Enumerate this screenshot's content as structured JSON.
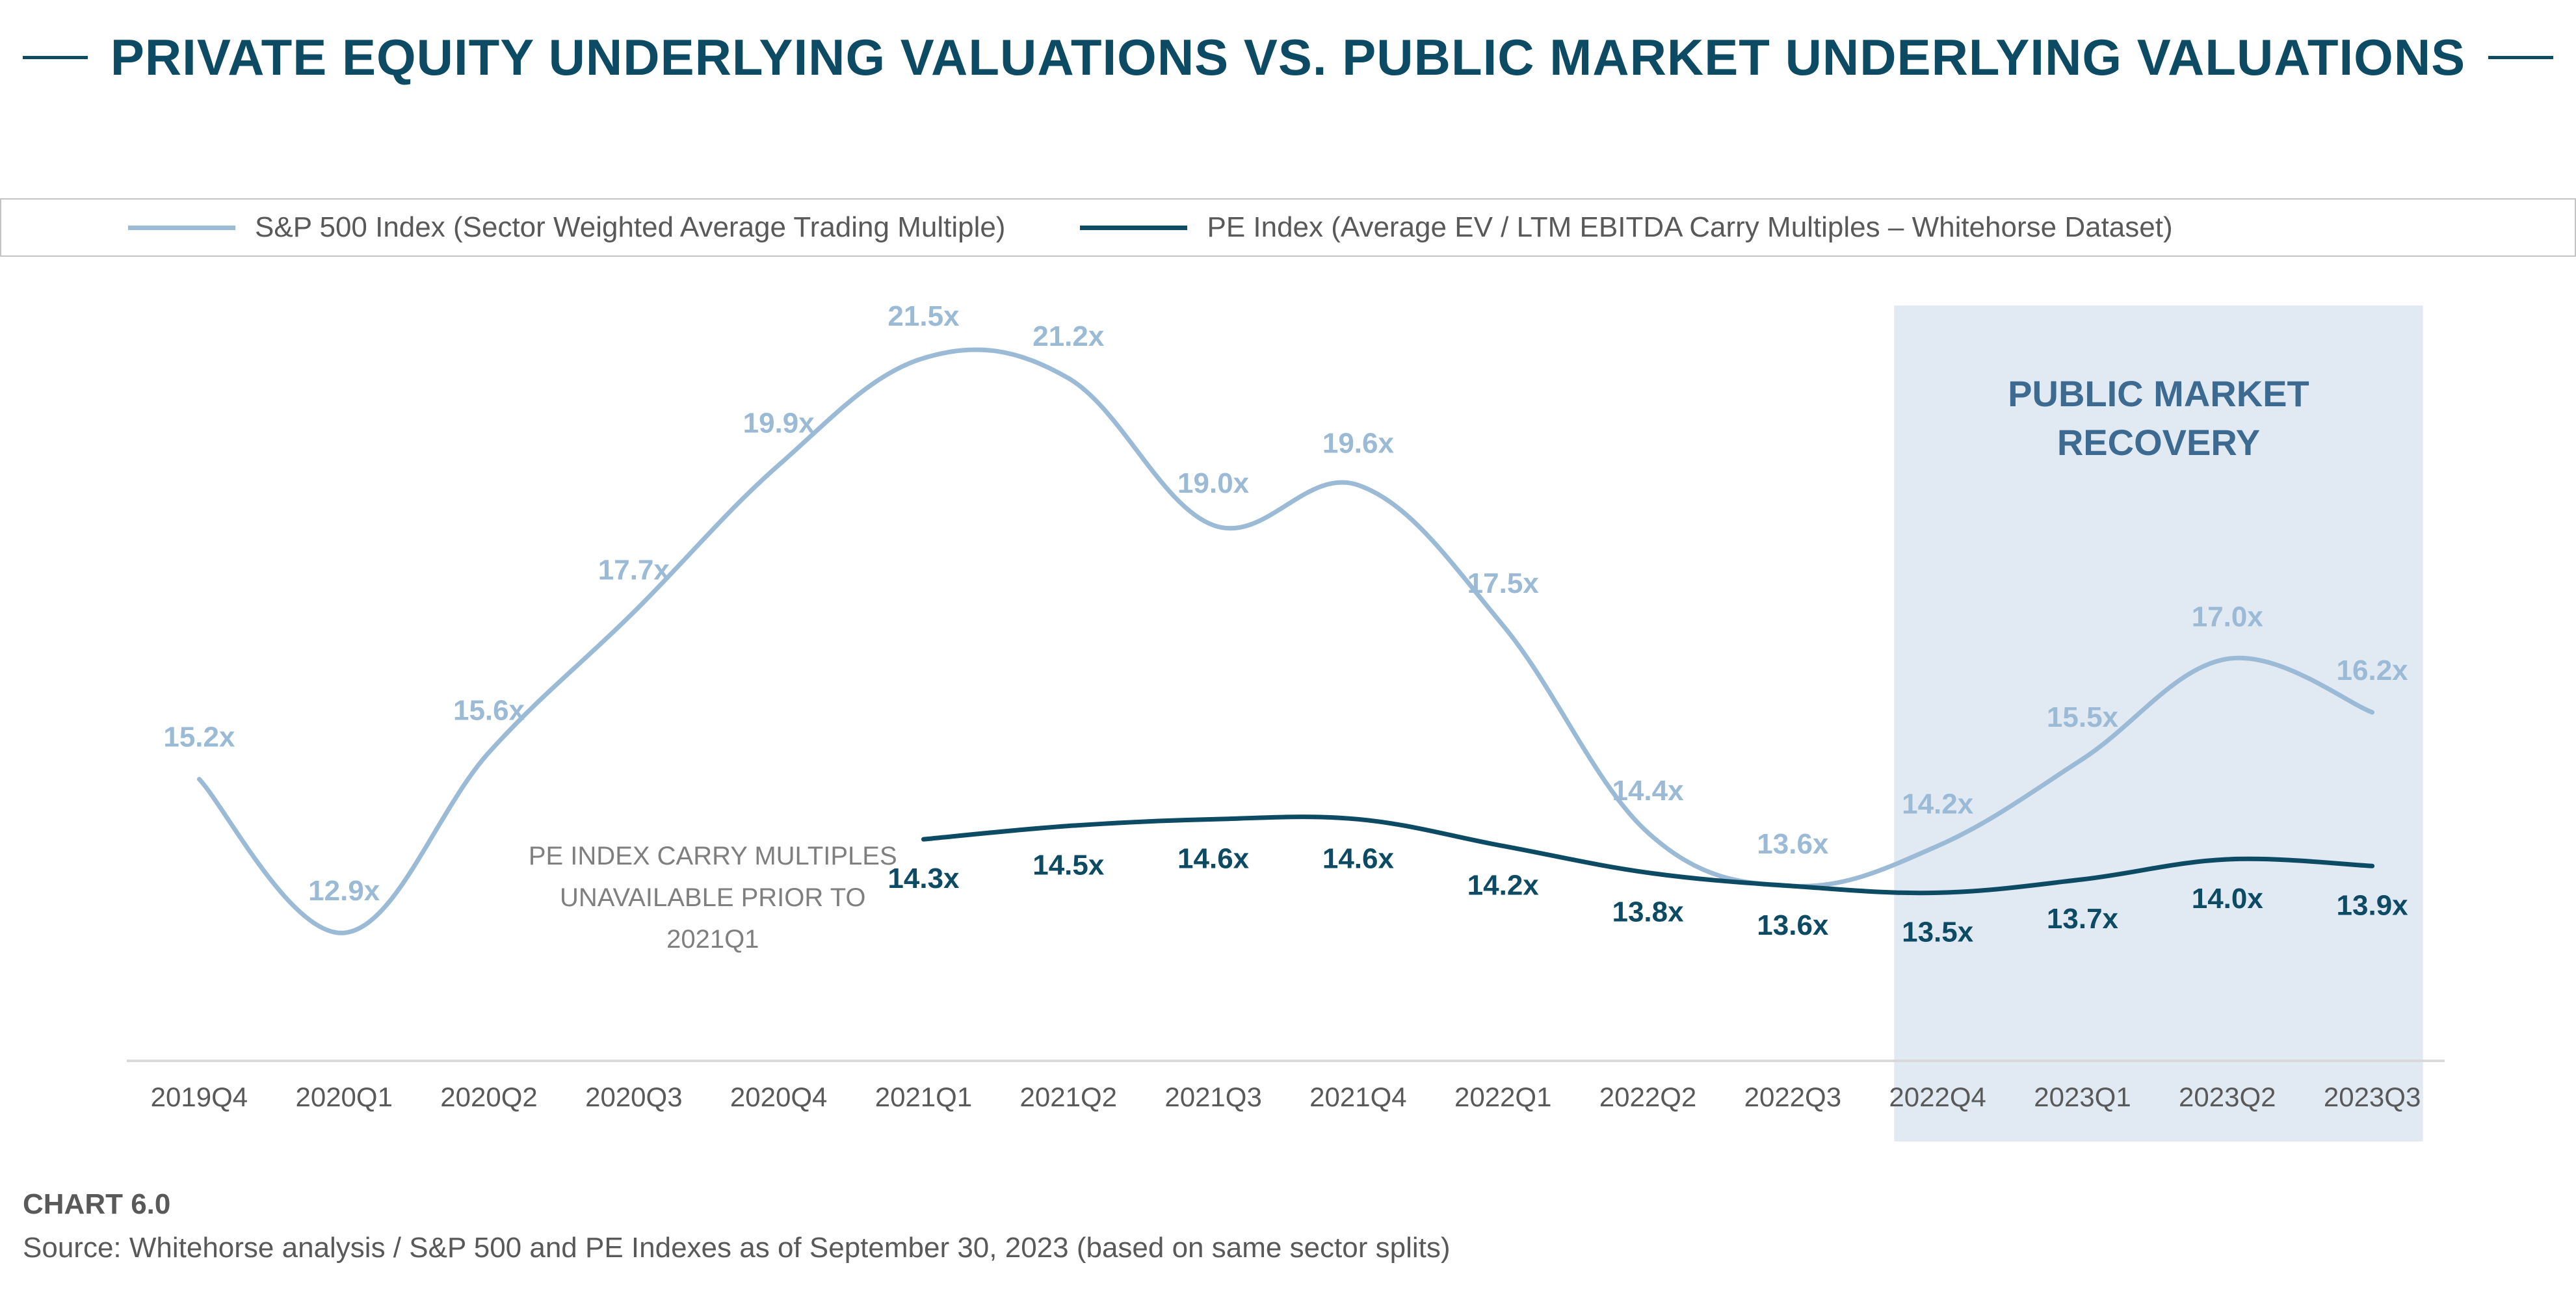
{
  "header": {
    "title": "PRIVATE EQUITY UNDERLYING VALUATIONS VS. PUBLIC MARKET UNDERLYING VALUATIONS"
  },
  "colors": {
    "title": "#0d4a64",
    "sp500": "#9bbad6",
    "pe": "#0d4a64",
    "recovery_band": "#e1e9f3",
    "recovery_text": "#3d6a90",
    "annotation_text": "#7f7f7f",
    "axis_text": "#595959",
    "axis_line": "#d9d9d9"
  },
  "chart_data": {
    "type": "line",
    "title": "PRIVATE EQUITY UNDERLYING VALUATIONS VS. PUBLIC MARKET UNDERLYING VALUATIONS",
    "xlabel": "",
    "ylabel": "",
    "categories": [
      "2019Q4",
      "2020Q1",
      "2020Q2",
      "2020Q3",
      "2020Q4",
      "2021Q1",
      "2021Q2",
      "2021Q3",
      "2021Q4",
      "2022Q1",
      "2022Q2",
      "2022Q3",
      "2022Q4",
      "2023Q1",
      "2023Q2",
      "2023Q3"
    ],
    "series": [
      {
        "name": "S&P 500 Index (Sector Weighted Average Trading Multiple)",
        "key": "sp500",
        "values": [
          15.2,
          12.9,
          15.6,
          17.7,
          19.9,
          21.5,
          21.2,
          19.0,
          19.6,
          17.5,
          14.4,
          13.6,
          14.2,
          15.5,
          17.0,
          16.2
        ],
        "labels": [
          "15.2x",
          "12.9x",
          "15.6x",
          "17.7x",
          "19.9x",
          "21.5x",
          "21.2x",
          "19.0x",
          "19.6x",
          "17.5x",
          "14.4x",
          "13.6x",
          "14.2x",
          "15.5x",
          "17.0x",
          "16.2x"
        ]
      },
      {
        "name": "PE Index (Average EV / LTM EBITDA Carry Multiples – Whitehorse Dataset)",
        "key": "pe",
        "values": [
          null,
          null,
          null,
          null,
          null,
          14.3,
          14.5,
          14.6,
          14.6,
          14.2,
          13.8,
          13.6,
          13.5,
          13.7,
          14.0,
          13.9
        ],
        "labels": [
          null,
          null,
          null,
          null,
          null,
          "14.3x",
          "14.5x",
          "14.6x",
          "14.6x",
          "14.2x",
          "13.8x",
          "13.6x",
          "13.5x",
          "13.7x",
          "14.0x",
          "13.9x"
        ]
      }
    ],
    "ylim": [
      11,
      23
    ],
    "grid": false,
    "legend": "top",
    "shaded_region": {
      "from": "2022Q4",
      "to": "2023Q3",
      "label_lines": [
        "PUBLIC MARKET",
        "RECOVERY"
      ]
    },
    "annotations": [
      {
        "lines": [
          "PE INDEX CARRY MULTIPLES",
          "UNAVAILABLE PRIOR TO",
          "2021Q1"
        ]
      }
    ]
  },
  "footer": {
    "chart_label": "CHART 6.0",
    "source": "Source: Whitehorse analysis / S&P 500 and PE Indexes as of September 30, 2023 (based on same sector splits)"
  }
}
